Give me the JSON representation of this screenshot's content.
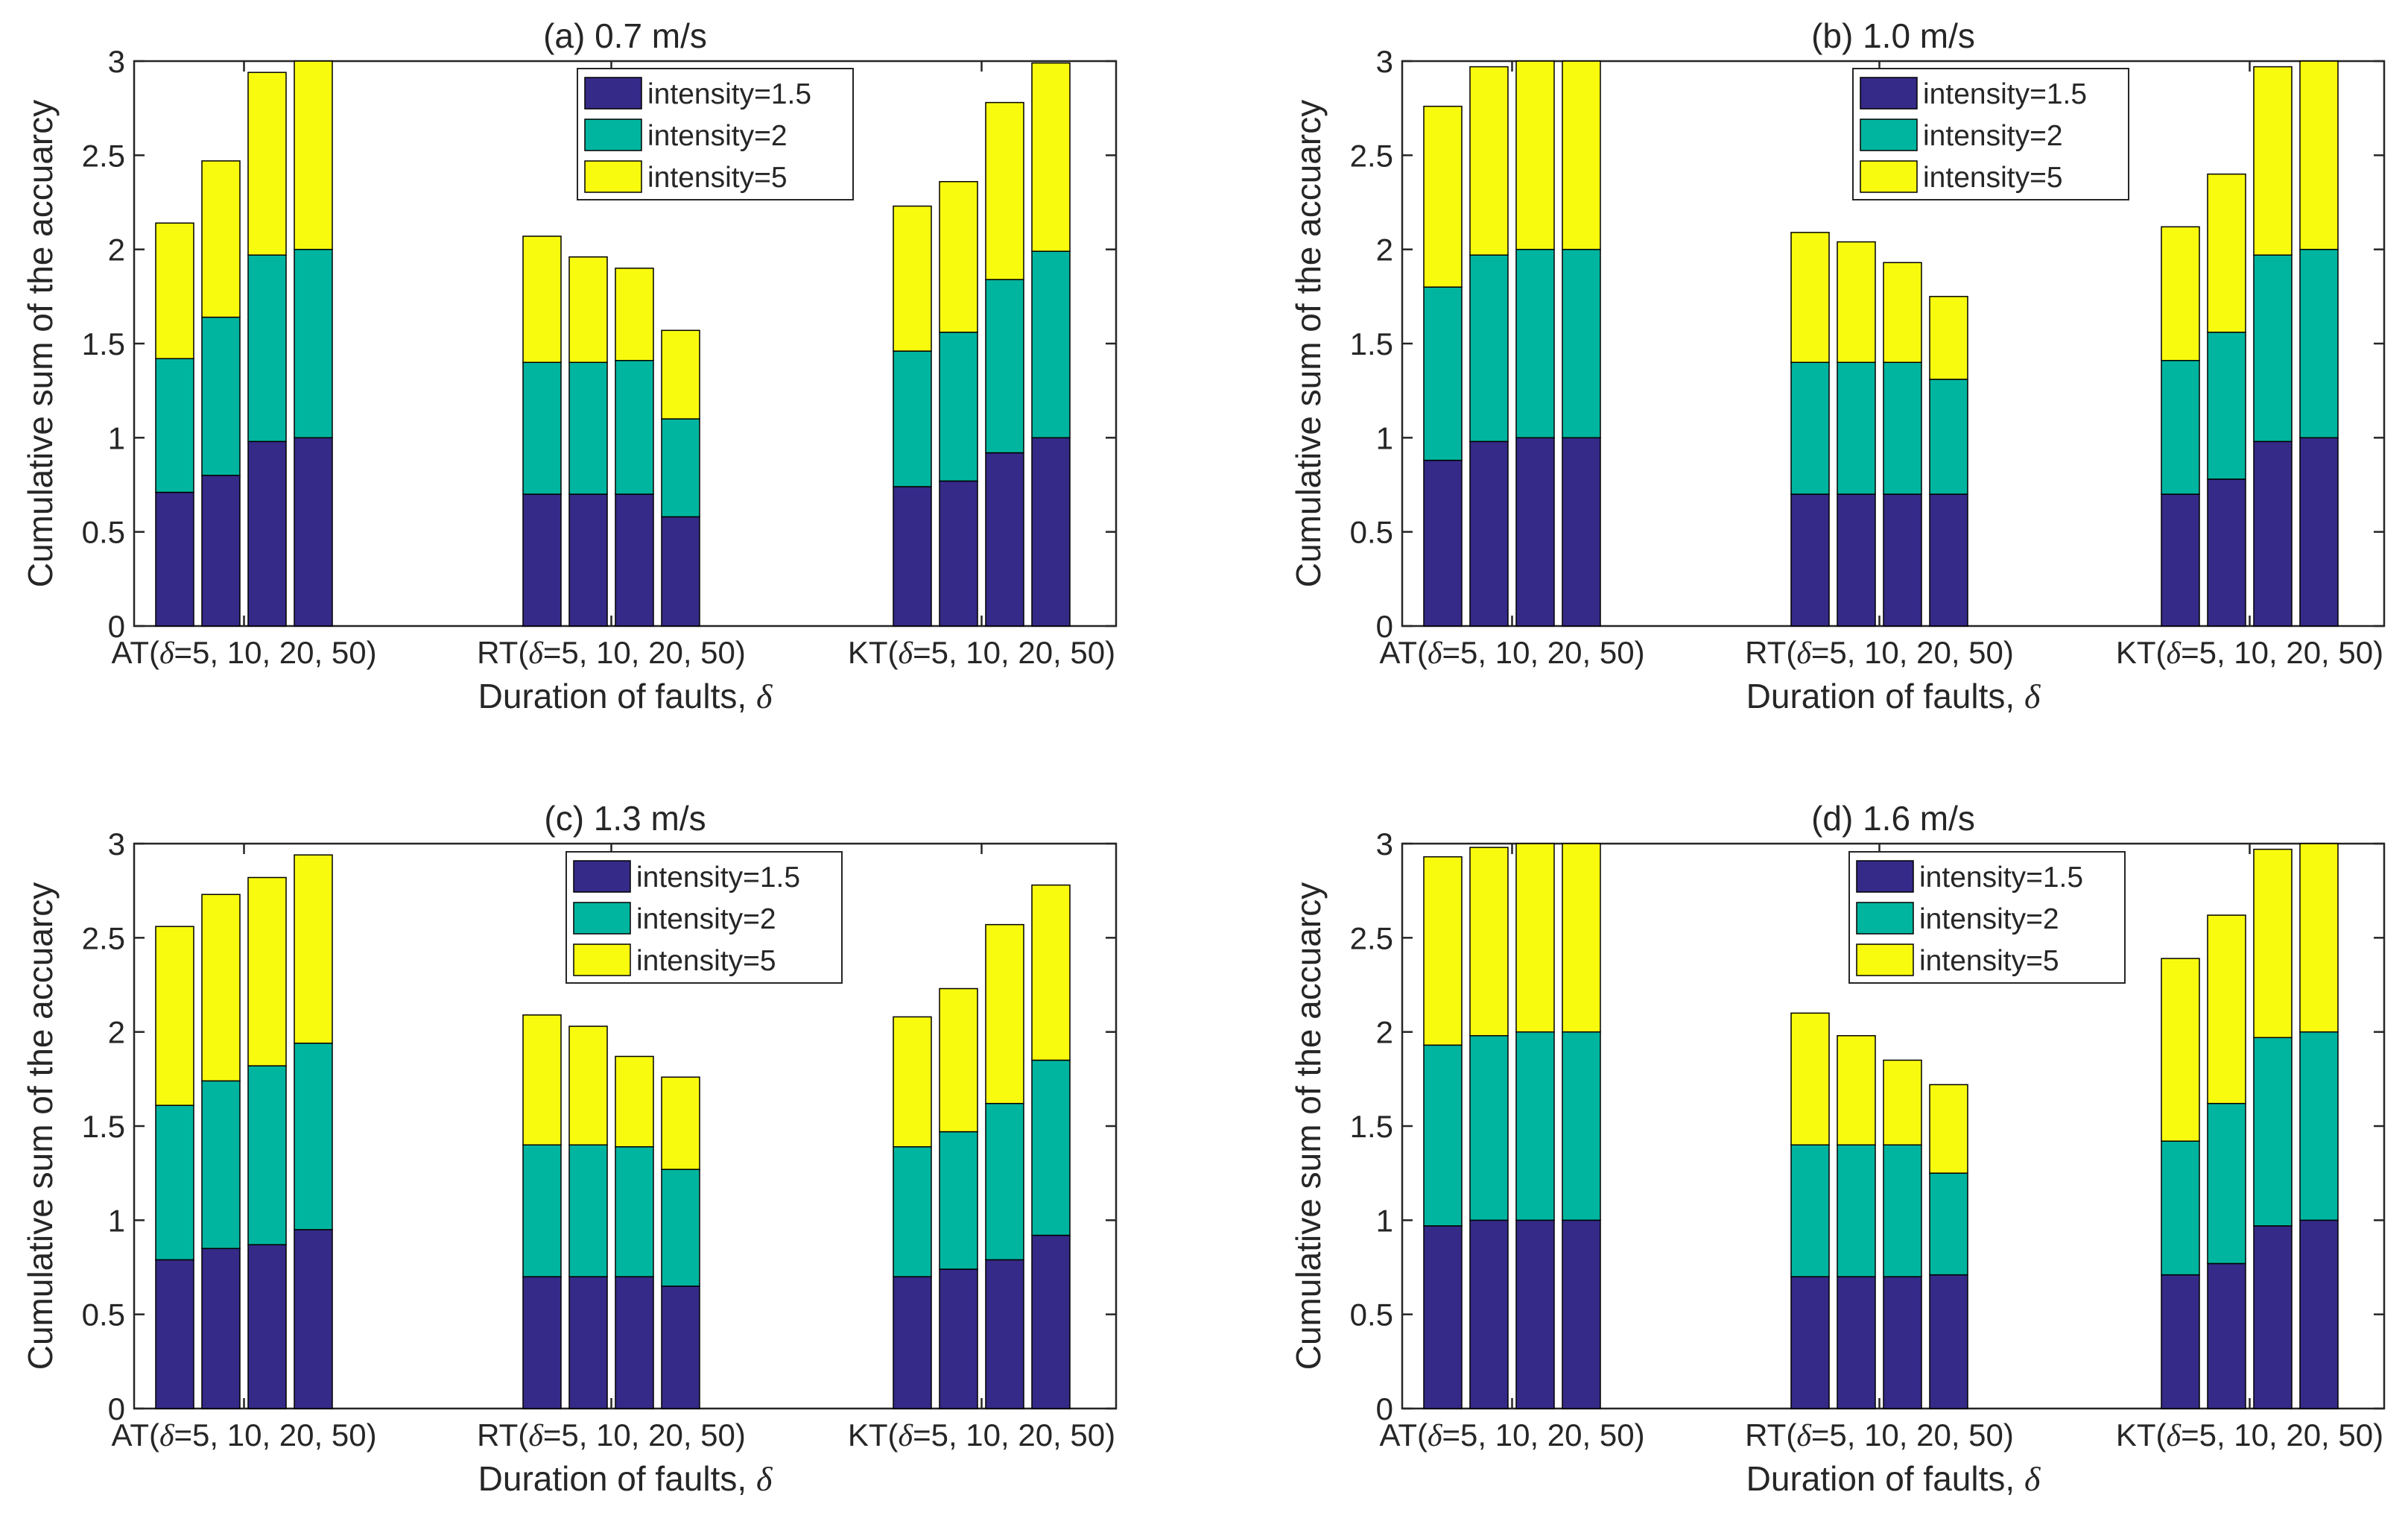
{
  "colors": {
    "intensity_1_5": "#352a87",
    "intensity_2": "#00b59f",
    "intensity_5": "#f9fb0e",
    "axis": "#262626",
    "background": "#ffffff"
  },
  "chart_data": [
    {
      "type": "bar",
      "stacked": true,
      "title": "(a) 0.7 m/s",
      "xlabel": "Duration of faults, δ",
      "ylabel": "Cumulative sum of the accuarcy",
      "ylim": [
        0,
        3
      ],
      "yticks": [
        "0",
        "0.5",
        "1",
        "1.5",
        "2",
        "2.5",
        "3"
      ],
      "legend_position": "top-center",
      "groups": [
        "AT(δ=5, 10, 20, 50)",
        "RT(δ=5, 10, 20, 50)",
        "KT(δ=5, 10, 20, 50)"
      ],
      "durations": [
        5,
        10,
        20,
        50
      ],
      "series": [
        {
          "name": "intensity=1.5",
          "values": [
            [
              0.71,
              0.8,
              0.98,
              1.0
            ],
            [
              0.7,
              0.7,
              0.7,
              0.58
            ],
            [
              0.74,
              0.77,
              0.92,
              1.0
            ]
          ]
        },
        {
          "name": "intensity=2",
          "values": [
            [
              0.71,
              0.84,
              0.99,
              1.0
            ],
            [
              0.7,
              0.7,
              0.71,
              0.52
            ],
            [
              0.72,
              0.79,
              0.92,
              0.99
            ]
          ]
        },
        {
          "name": "intensity=5",
          "values": [
            [
              0.72,
              0.83,
              0.97,
              1.0
            ],
            [
              0.67,
              0.56,
              0.49,
              0.47
            ],
            [
              0.77,
              0.8,
              0.94,
              1.0
            ]
          ]
        }
      ]
    },
    {
      "type": "bar",
      "stacked": true,
      "title": "(b) 1.0 m/s",
      "xlabel": "Duration of faults, δ",
      "ylabel": "Cumulative sum of the accuarcy",
      "ylim": [
        0,
        3
      ],
      "yticks": [
        "0",
        "0.5",
        "1",
        "1.5",
        "2",
        "2.5",
        "3"
      ],
      "legend_position": "top-center",
      "groups": [
        "AT(δ=5, 10, 20, 50)",
        "RT(δ=5, 10, 20, 50)",
        "KT(δ=5, 10, 20, 50)"
      ],
      "durations": [
        5,
        10,
        20,
        50
      ],
      "series": [
        {
          "name": "intensity=1.5",
          "values": [
            [
              0.88,
              0.98,
              1.0,
              1.0
            ],
            [
              0.7,
              0.7,
              0.7,
              0.7
            ],
            [
              0.7,
              0.78,
              0.98,
              1.0
            ]
          ]
        },
        {
          "name": "intensity=2",
          "values": [
            [
              0.92,
              0.99,
              1.0,
              1.0
            ],
            [
              0.7,
              0.7,
              0.7,
              0.61
            ],
            [
              0.71,
              0.78,
              0.99,
              1.0
            ]
          ]
        },
        {
          "name": "intensity=5",
          "values": [
            [
              0.96,
              1.0,
              1.0,
              1.0
            ],
            [
              0.69,
              0.64,
              0.53,
              0.44
            ],
            [
              0.71,
              0.84,
              1.0,
              1.0
            ]
          ]
        }
      ]
    },
    {
      "type": "bar",
      "stacked": true,
      "title": "(c) 1.3 m/s",
      "xlabel": "Duration of faults, δ",
      "ylabel": "Cumulative sum of the accuarcy",
      "ylim": [
        0,
        3
      ],
      "yticks": [
        "0",
        "0.5",
        "1",
        "1.5",
        "2",
        "2.5",
        "3"
      ],
      "legend_position": "top-center",
      "groups": [
        "AT(δ=5, 10, 20, 50)",
        "RT(δ=5, 10, 20, 50)",
        "KT(δ=5, 10, 20, 50)"
      ],
      "durations": [
        5,
        10,
        20,
        50
      ],
      "series": [
        {
          "name": "intensity=1.5",
          "values": [
            [
              0.79,
              0.85,
              0.87,
              0.95
            ],
            [
              0.7,
              0.7,
              0.7,
              0.65
            ],
            [
              0.7,
              0.74,
              0.79,
              0.92
            ]
          ]
        },
        {
          "name": "intensity=2",
          "values": [
            [
              0.82,
              0.89,
              0.95,
              0.99
            ],
            [
              0.7,
              0.7,
              0.69,
              0.62
            ],
            [
              0.69,
              0.73,
              0.83,
              0.93
            ]
          ]
        },
        {
          "name": "intensity=5",
          "values": [
            [
              0.95,
              0.99,
              1.0,
              1.0
            ],
            [
              0.69,
              0.63,
              0.48,
              0.49
            ],
            [
              0.69,
              0.76,
              0.95,
              0.93
            ]
          ]
        }
      ]
    },
    {
      "type": "bar",
      "stacked": true,
      "title": "(d) 1.6 m/s",
      "xlabel": "Duration of faults, δ",
      "ylabel": "Cumulative sum of the accuarcy",
      "ylim": [
        0,
        3
      ],
      "yticks": [
        "0",
        "0.5",
        "1",
        "1.5",
        "2",
        "2.5",
        "3"
      ],
      "legend_position": "top-center",
      "groups": [
        "AT(δ=5, 10, 20, 50)",
        "RT(δ=5, 10, 20, 50)",
        "KT(δ=5, 10, 20, 50)"
      ],
      "durations": [
        5,
        10,
        20,
        50
      ],
      "series": [
        {
          "name": "intensity=1.5",
          "values": [
            [
              0.97,
              1.0,
              1.0,
              1.0
            ],
            [
              0.7,
              0.7,
              0.7,
              0.71
            ],
            [
              0.71,
              0.77,
              0.97,
              1.0
            ]
          ]
        },
        {
          "name": "intensity=2",
          "values": [
            [
              0.96,
              0.98,
              1.0,
              1.0
            ],
            [
              0.7,
              0.7,
              0.7,
              0.54
            ],
            [
              0.71,
              0.85,
              1.0,
              1.0
            ]
          ]
        },
        {
          "name": "intensity=5",
          "values": [
            [
              1.0,
              1.0,
              1.0,
              1.0
            ],
            [
              0.7,
              0.58,
              0.45,
              0.47
            ],
            [
              0.97,
              1.0,
              1.0,
              1.0
            ]
          ]
        }
      ]
    }
  ]
}
